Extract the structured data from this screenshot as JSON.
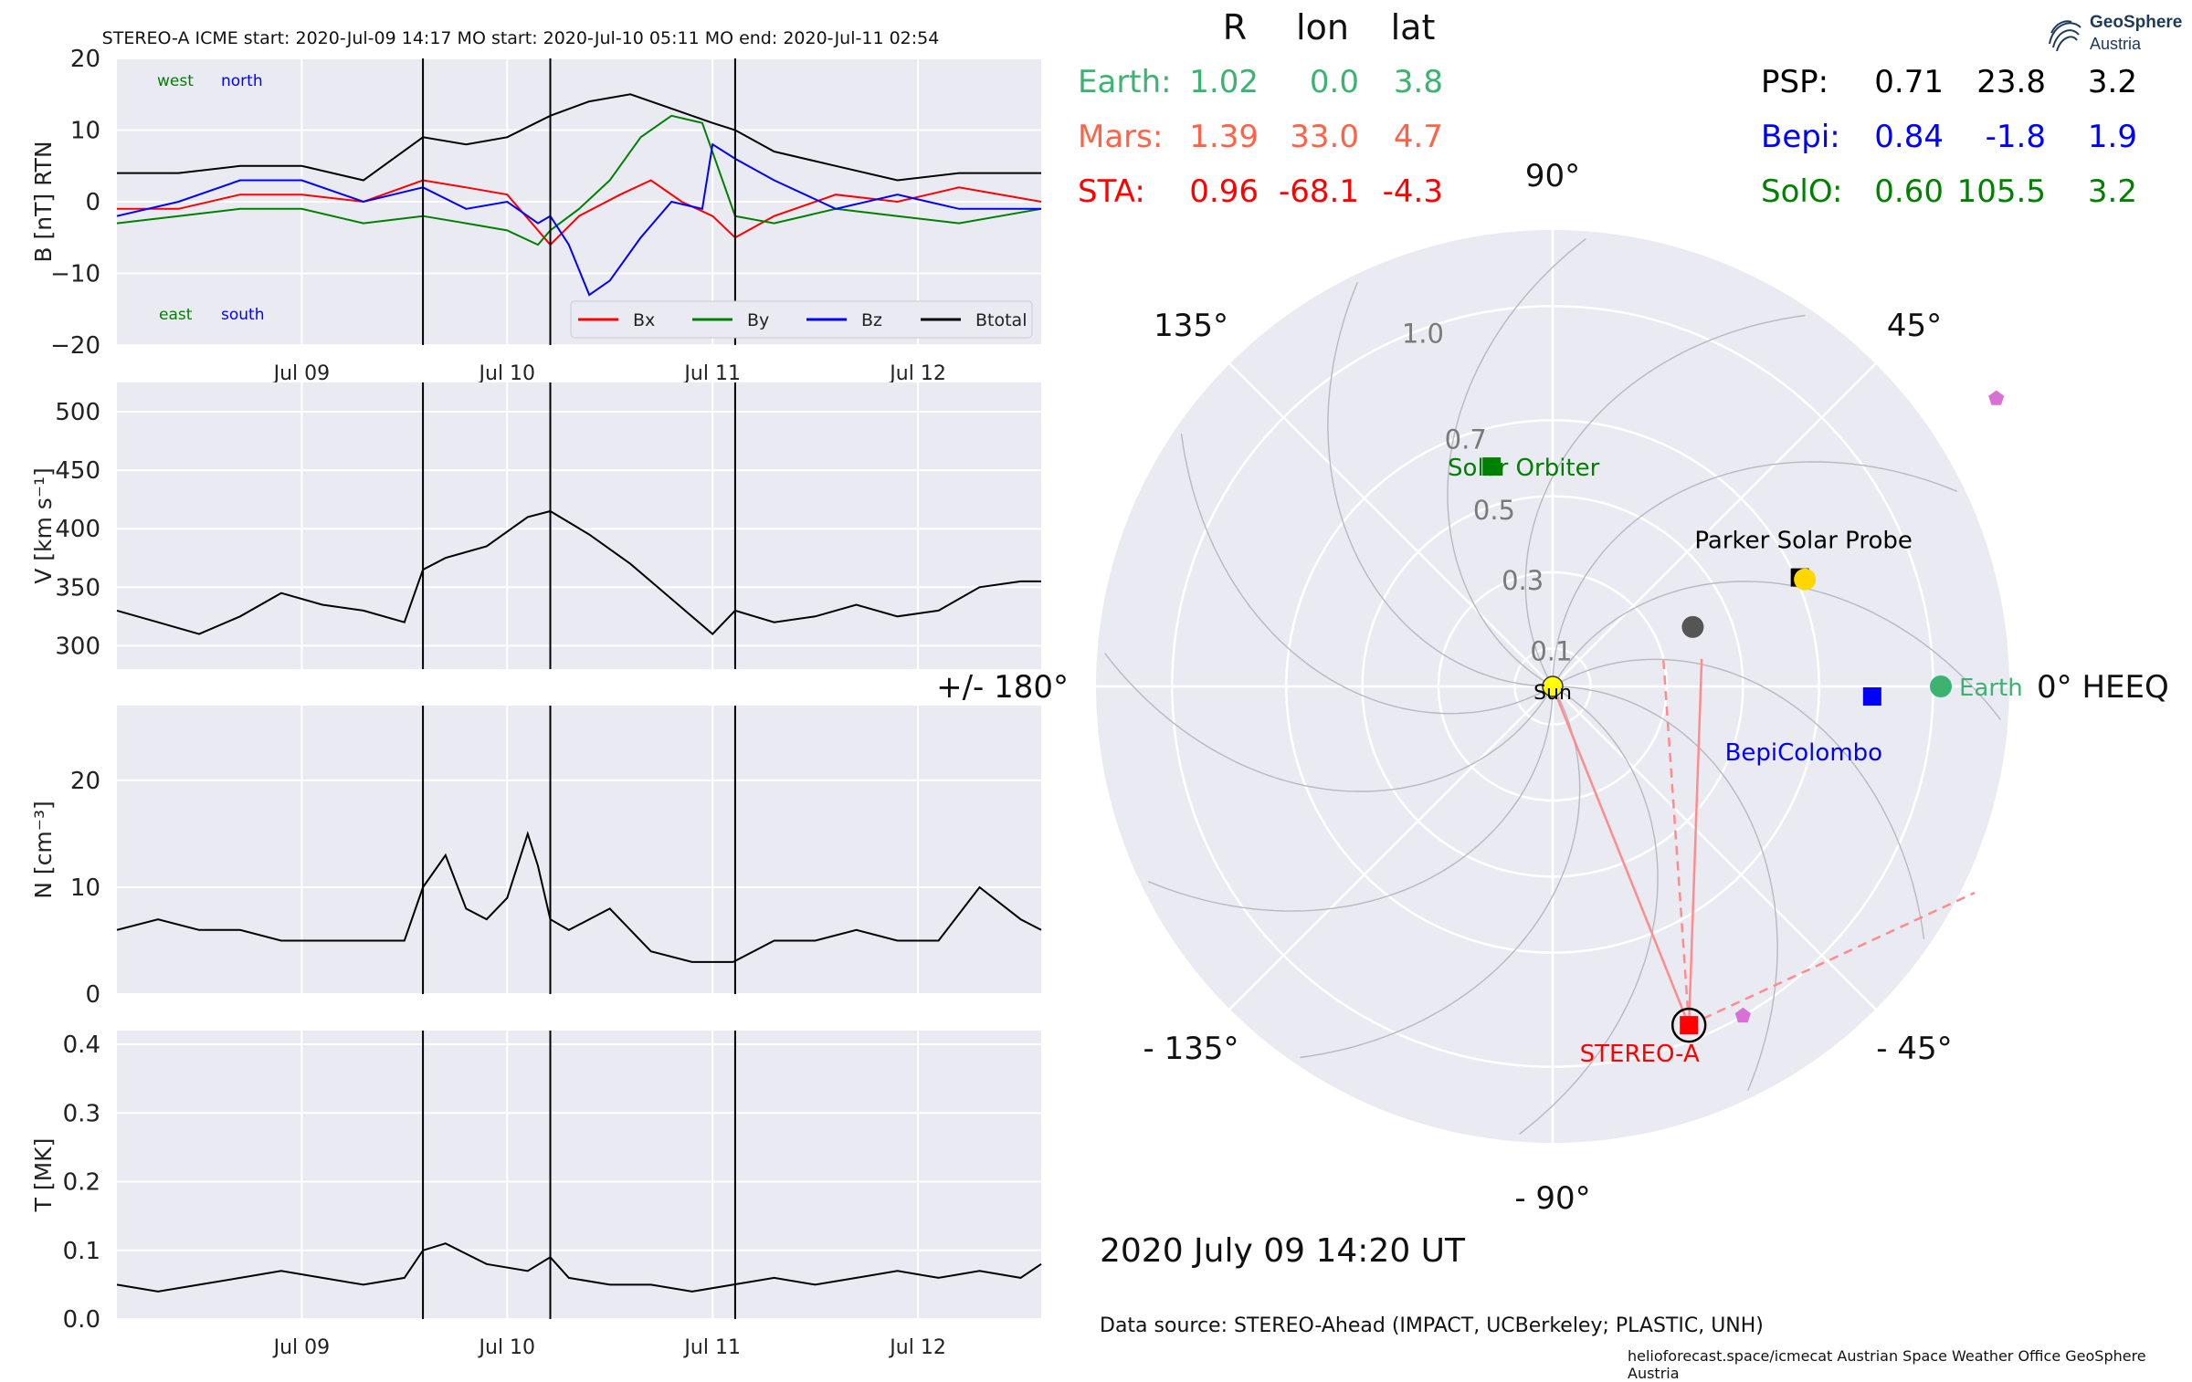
{
  "title_line": "STEREO-A    ICME start: 2020-Jul-09 14:17    MO start: 2020-Jul-10 05:11    MO end: 2020-Jul-11 02:54",
  "colors": {
    "panel_bg": "#eaeaf2",
    "grid": "#ffffff",
    "bx": "#ff0000",
    "by": "#008000",
    "bz": "#0000ff",
    "btotal": "#000000",
    "earth": "#3cb371",
    "mars": "#ff6347",
    "sta": "#ff0000",
    "psp": "#000000",
    "bepi": "#0000ff",
    "solo": "#008000",
    "venus": "#ffd700",
    "mercury": "#555555",
    "pentagon": "#da70d6"
  },
  "position_table": {
    "headers": [
      "R",
      "lon",
      "lat"
    ],
    "rows_left": [
      {
        "name": "Earth:",
        "r": "1.02",
        "lon": "0.0",
        "lat": "3.8",
        "color": "#3cb371"
      },
      {
        "name": "Mars:",
        "r": "1.39",
        "lon": "33.0",
        "lat": "4.7",
        "color": "#ff6347"
      },
      {
        "name": "STA:",
        "r": "0.96",
        "lon": "-68.1",
        "lat": "-4.3",
        "color": "#ff0000"
      }
    ],
    "rows_right": [
      {
        "name": "PSP:",
        "r": "0.71",
        "lon": "23.8",
        "lat": "3.2",
        "color": "#000000"
      },
      {
        "name": "Bepi:",
        "r": "0.84",
        "lon": "-1.8",
        "lat": "1.9",
        "color": "#0000ff"
      },
      {
        "name": "SolO:",
        "r": "0.60",
        "lon": "105.5",
        "lat": "3.2",
        "color": "#008000"
      }
    ]
  },
  "logo": {
    "line1": "GeoSphere",
    "line2": "Austria"
  },
  "date_label": "2020 July 09  14:20 UT",
  "data_source": "Data source: STEREO-Ahead (IMPACT, UCBerkeley; PLASTIC, UNH)",
  "credits": "helioforecast.space/icmecat   Austrian Space Weather Office   GeoSphere Austria",
  "chart_data": [
    {
      "type": "line",
      "ylabel": "B [nT] RTN",
      "ylim": [
        -20,
        20
      ],
      "yticks": [
        "20",
        "10",
        "0",
        "−10",
        "−20"
      ],
      "xlim": [
        0,
        4.5
      ],
      "xticks": [
        {
          "x": 0.9,
          "label": "Jul 09"
        },
        {
          "x": 1.9,
          "label": "Jul 10"
        },
        {
          "x": 2.9,
          "label": "Jul 11"
        },
        {
          "x": 3.9,
          "label": "Jul 12"
        }
      ],
      "event_lines": [
        1.49,
        2.11,
        3.01
      ],
      "corner_labels": {
        "west": "west",
        "north": "north",
        "east": "east",
        "south": "south"
      },
      "legend": [
        "Bx",
        "By",
        "Bz",
        "Btotal"
      ],
      "series": [
        {
          "name": "Bx",
          "color": "#ff0000",
          "x": [
            0,
            0.3,
            0.6,
            0.9,
            1.2,
            1.49,
            1.7,
            1.9,
            2.05,
            2.11,
            2.25,
            2.45,
            2.6,
            2.75,
            2.9,
            3.01,
            3.2,
            3.5,
            3.8,
            4.1,
            4.5
          ],
          "y": [
            -1,
            -1,
            1,
            1,
            0,
            3,
            2,
            1,
            -4,
            -6,
            -2,
            1,
            3,
            0,
            -2,
            -5,
            -2,
            1,
            0,
            2,
            0
          ]
        },
        {
          "name": "By",
          "color": "#008000",
          "x": [
            0,
            0.3,
            0.6,
            0.9,
            1.2,
            1.49,
            1.7,
            1.9,
            2.05,
            2.11,
            2.25,
            2.4,
            2.55,
            2.7,
            2.85,
            3.01,
            3.2,
            3.5,
            3.8,
            4.1,
            4.5
          ],
          "y": [
            -3,
            -2,
            -1,
            -1,
            -3,
            -2,
            -3,
            -4,
            -6,
            -4,
            -1,
            3,
            9,
            12,
            11,
            -2,
            -3,
            -1,
            -2,
            -3,
            -1
          ]
        },
        {
          "name": "Bz",
          "color": "#0000ff",
          "x": [
            0,
            0.3,
            0.6,
            0.9,
            1.2,
            1.49,
            1.7,
            1.9,
            2.05,
            2.11,
            2.2,
            2.3,
            2.4,
            2.55,
            2.7,
            2.85,
            2.9,
            3.01,
            3.2,
            3.5,
            3.8,
            4.1,
            4.5
          ],
          "y": [
            -2,
            0,
            3,
            3,
            0,
            2,
            -1,
            0,
            -3,
            -2,
            -6,
            -13,
            -11,
            -5,
            0,
            -1,
            8,
            6,
            3,
            -1,
            1,
            -1,
            -1
          ]
        },
        {
          "name": "Btotal",
          "color": "#000000",
          "x": [
            0,
            0.3,
            0.6,
            0.9,
            1.2,
            1.49,
            1.7,
            1.9,
            2.11,
            2.3,
            2.5,
            2.7,
            2.9,
            3.01,
            3.2,
            3.5,
            3.8,
            4.1,
            4.5
          ],
          "y": [
            4,
            4,
            5,
            5,
            3,
            9,
            8,
            9,
            12,
            14,
            15,
            13,
            11,
            10,
            7,
            5,
            3,
            4,
            4
          ]
        }
      ]
    },
    {
      "type": "line",
      "ylabel": "V [km s⁻¹]",
      "ylim": [
        280,
        525
      ],
      "yticks": [
        "500",
        "450",
        "400",
        "350",
        "300"
      ],
      "xlim": [
        0,
        4.5
      ],
      "event_lines": [
        1.49,
        2.11,
        3.01
      ],
      "series": [
        {
          "name": "",
          "color": "#000000",
          "x": [
            0,
            0.2,
            0.4,
            0.6,
            0.8,
            1.0,
            1.2,
            1.4,
            1.49,
            1.6,
            1.8,
            2.0,
            2.11,
            2.3,
            2.5,
            2.7,
            2.9,
            3.01,
            3.2,
            3.4,
            3.6,
            3.8,
            4.0,
            4.2,
            4.4,
            4.5
          ],
          "y": [
            330,
            320,
            310,
            325,
            345,
            335,
            330,
            320,
            365,
            375,
            385,
            410,
            415,
            395,
            370,
            340,
            310,
            330,
            320,
            325,
            335,
            325,
            330,
            350,
            355,
            355
          ]
        }
      ]
    },
    {
      "type": "line",
      "ylabel": "N [cm⁻³]",
      "ylim": [
        0,
        27
      ],
      "yticks": [
        "20",
        "10",
        "0"
      ],
      "xlim": [
        0,
        4.5
      ],
      "event_lines": [
        1.49,
        2.11,
        3.01
      ],
      "series": [
        {
          "name": "",
          "color": "#000000",
          "x": [
            0,
            0.2,
            0.4,
            0.6,
            0.8,
            1.0,
            1.2,
            1.4,
            1.49,
            1.6,
            1.7,
            1.8,
            1.9,
            2.0,
            2.05,
            2.11,
            2.2,
            2.4,
            2.6,
            2.8,
            3.0,
            3.2,
            3.4,
            3.6,
            3.8,
            4.0,
            4.2,
            4.4,
            4.5
          ],
          "y": [
            6,
            7,
            6,
            6,
            5,
            5,
            5,
            5,
            10,
            13,
            8,
            7,
            9,
            15,
            12,
            7,
            6,
            8,
            4,
            3,
            3,
            5,
            5,
            6,
            5,
            5,
            10,
            7,
            6
          ]
        }
      ]
    },
    {
      "type": "line",
      "ylabel": "T [MK]",
      "ylim": [
        0,
        0.42
      ],
      "yticks": [
        "0.4",
        "0.3",
        "0.2",
        "0.1",
        "0.0"
      ],
      "xlim": [
        0,
        4.5
      ],
      "xticks": [
        {
          "x": 0.9,
          "label": "Jul 09"
        },
        {
          "x": 1.9,
          "label": "Jul 10"
        },
        {
          "x": 2.9,
          "label": "Jul 11"
        },
        {
          "x": 3.9,
          "label": "Jul 12"
        }
      ],
      "event_lines": [
        1.49,
        2.11,
        3.01
      ],
      "series": [
        {
          "name": "",
          "color": "#000000",
          "x": [
            0,
            0.2,
            0.4,
            0.6,
            0.8,
            1.0,
            1.2,
            1.4,
            1.49,
            1.6,
            1.8,
            2.0,
            2.11,
            2.2,
            2.4,
            2.6,
            2.8,
            3.0,
            3.2,
            3.4,
            3.6,
            3.8,
            4.0,
            4.2,
            4.4,
            4.5
          ],
          "y": [
            0.05,
            0.04,
            0.05,
            0.06,
            0.07,
            0.06,
            0.05,
            0.06,
            0.1,
            0.11,
            0.08,
            0.07,
            0.09,
            0.06,
            0.05,
            0.05,
            0.04,
            0.05,
            0.06,
            0.05,
            0.06,
            0.07,
            0.06,
            0.07,
            0.06,
            0.08
          ]
        }
      ]
    },
    {
      "type": "scatter",
      "polar": true,
      "angle_labels": [
        {
          "deg": 0,
          "label": "0° HEEQ"
        },
        {
          "deg": 45,
          "label": "45°"
        },
        {
          "deg": 90,
          "label": "90°"
        },
        {
          "deg": 135,
          "label": "135°"
        },
        {
          "deg": 180,
          "label": "+/- 180°"
        },
        {
          "deg": -135,
          "label": "- 135°"
        },
        {
          "deg": -90,
          "label": "- 90°"
        },
        {
          "deg": -45,
          "label": "- 45°"
        }
      ],
      "r_max": 1.2,
      "r_rings": [
        0.1,
        0.3,
        0.5,
        0.7,
        1.0
      ],
      "r_labels": [
        "0.1",
        "0.3",
        "0.5",
        "0.7",
        "1.0"
      ],
      "bodies": [
        {
          "name": "Sun",
          "lon": 0,
          "r": 0,
          "marker": "circle",
          "color": "#ffff00",
          "label": "Sun",
          "label_color": "#000000"
        },
        {
          "name": "Earth",
          "lon": 0,
          "r": 1.02,
          "marker": "circle",
          "color": "#3cb371",
          "label": "Earth",
          "label_color": "#3cb371"
        },
        {
          "name": "STEREO-A",
          "lon": -68.1,
          "r": 0.96,
          "marker": "square",
          "color": "#ff0000",
          "label": "STEREO-A",
          "label_color": "#ff0000"
        },
        {
          "name": "Parker Solar Probe",
          "lon": 23.8,
          "r": 0.71,
          "marker": "square",
          "color": "#000000",
          "label": "Parker Solar Probe",
          "label_color": "#000000"
        },
        {
          "name": "BepiColombo",
          "lon": -1.8,
          "r": 0.84,
          "marker": "square",
          "color": "#0000ff",
          "label": "BepiColombo",
          "label_color": "#0000ff"
        },
        {
          "name": "Solar Orbiter",
          "lon": 105.5,
          "r": 0.6,
          "marker": "square",
          "color": "#008000",
          "label": "Solar Orbiter",
          "label_color": "#008000"
        },
        {
          "name": "Venus",
          "lon": 23,
          "r": 0.72,
          "marker": "circle",
          "color": "#ffd700"
        },
        {
          "name": "Mercury",
          "lon": 23,
          "r": 0.4,
          "marker": "circle",
          "color": "#555555"
        },
        {
          "name": "Mars",
          "lon": 33,
          "r": 1.39,
          "marker": "pentagon",
          "color": "#da70d6"
        },
        {
          "name": "pentagon2",
          "lon": -60,
          "r": 1.0,
          "marker": "pentagon",
          "color": "#da70d6"
        }
      ]
    }
  ]
}
